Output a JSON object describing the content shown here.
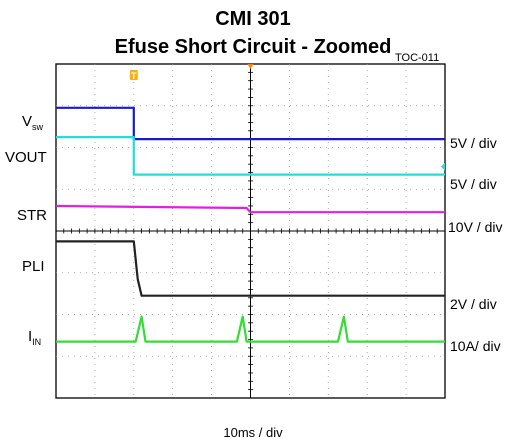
{
  "chart_data": {
    "type": "line",
    "title": "CMI  301",
    "subtitle": "Efuse Short Circuit - Zoomed",
    "figure_id": "TOC-011",
    "xlabel": "10ms / div",
    "grid": true,
    "x_divisions": 10,
    "y_divisions": 8,
    "trigger_marker": "T",
    "series": [
      {
        "name": "Vsw",
        "label_main": "V",
        "label_sub": "sw",
        "scale": "5V / div",
        "color": "#1a1acc",
        "x": [
          0,
          2.0,
          2.0,
          10
        ],
        "y": [
          6.95,
          6.95,
          6.2,
          6.2
        ]
      },
      {
        "name": "VOUT",
        "label_main": "VOUT",
        "label_sub": "",
        "scale": "5V / div",
        "color": "#22dddd",
        "x": [
          0,
          2.0,
          2.0,
          10
        ],
        "y": [
          6.25,
          6.25,
          5.35,
          5.35
        ]
      },
      {
        "name": "STR",
        "label_main": "STR",
        "label_sub": "",
        "scale": "10V / div",
        "color": "#e020e0",
        "x": [
          0,
          4.9,
          5.0,
          10
        ],
        "y": [
          4.6,
          4.55,
          4.45,
          4.45
        ]
      },
      {
        "name": "PLI",
        "label_main": "PLI",
        "label_sub": "",
        "scale": "2V / div",
        "color": "#222222",
        "x": [
          0,
          2.0,
          2.1,
          2.2,
          10
        ],
        "y": [
          3.75,
          3.75,
          2.85,
          2.45,
          2.45
        ]
      },
      {
        "name": "IIN",
        "label_main": "I",
        "label_sub": "IN",
        "scale": "10A/ div",
        "color": "#33dd33",
        "x": [
          0,
          2.05,
          2.2,
          2.3,
          4.65,
          4.8,
          4.9,
          7.25,
          7.4,
          7.5,
          10
        ],
        "y": [
          1.35,
          1.35,
          1.95,
          1.35,
          1.35,
          1.95,
          1.35,
          1.35,
          1.95,
          1.35,
          1.35
        ]
      }
    ]
  }
}
